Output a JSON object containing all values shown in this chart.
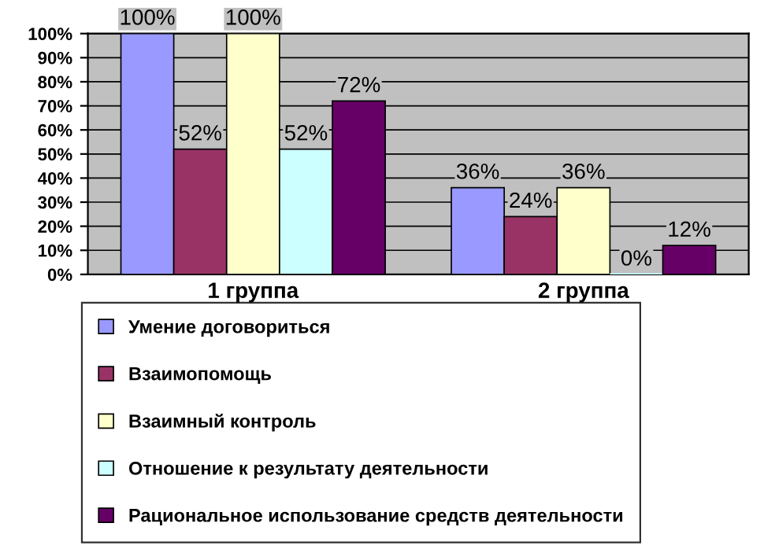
{
  "chart_data": {
    "type": "bar",
    "categories": [
      "1 группа",
      "2 группа"
    ],
    "series": [
      {
        "name": "Умение договориться",
        "color": "#9999ff",
        "values": [
          100,
          36
        ],
        "value_labels": [
          "100%",
          "36%"
        ]
      },
      {
        "name": "Взаимопомощь",
        "color": "#993366",
        "values": [
          52,
          24
        ],
        "value_labels": [
          "52%",
          "24%"
        ]
      },
      {
        "name": "Взаимный контроль",
        "color": "#ffffcc",
        "values": [
          100,
          36
        ],
        "value_labels": [
          "100%",
          "36%"
        ]
      },
      {
        "name": "Отношение к результату деятельности",
        "color": "#ccffff",
        "values": [
          52,
          0
        ],
        "value_labels": [
          "52%",
          "0%"
        ]
      },
      {
        "name": "Рациональное использование средств деятельности",
        "color": "#660066",
        "values": [
          72,
          12
        ],
        "value_labels": [
          "72%",
          "12%"
        ]
      }
    ],
    "ylim": [
      0,
      100
    ],
    "yticks": [
      {
        "value": 0,
        "label": "0%"
      },
      {
        "value": 10,
        "label": "10%"
      },
      {
        "value": 20,
        "label": "20%"
      },
      {
        "value": 30,
        "label": "30%"
      },
      {
        "value": 40,
        "label": "40%"
      },
      {
        "value": 50,
        "label": "50%"
      },
      {
        "value": 60,
        "label": "60%"
      },
      {
        "value": 70,
        "label": "70%"
      },
      {
        "value": 80,
        "label": "80%"
      },
      {
        "value": 90,
        "label": "90%"
      },
      {
        "value": 100,
        "label": "100%"
      }
    ],
    "grid": "y",
    "legend": "bottom"
  }
}
